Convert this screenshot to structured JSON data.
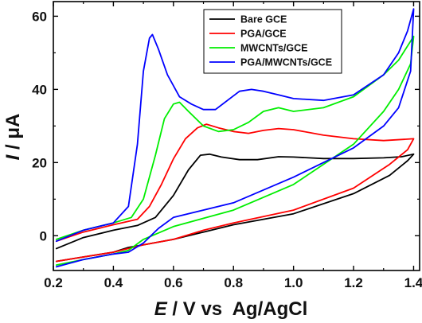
{
  "chart_data": {
    "type": "line",
    "title": "",
    "xlabel": {
      "symbol": "E",
      "rest": " / V vs  Ag/AgCl"
    },
    "ylabel": {
      "symbol": "I",
      "rest": " / μA"
    },
    "xlim": [
      0.2,
      1.42
    ],
    "ylim": [
      -9.5,
      64
    ],
    "xticks": [
      0.2,
      0.4,
      0.6,
      0.8,
      1.0,
      1.2,
      1.4
    ],
    "xtick_labels": [
      "0.2",
      "0.4",
      "0.6",
      "0.8",
      "1.0",
      "1.2",
      "1.4"
    ],
    "yticks": [
      0,
      20,
      40,
      60
    ],
    "ytick_labels": [
      "0",
      "20",
      "40",
      "60"
    ],
    "grid": false,
    "legend_position": "top-right",
    "series": [
      {
        "name": "Bare GCE",
        "color": "#000000",
        "x": [
          0.21,
          0.3,
          0.4,
          0.48,
          0.54,
          0.6,
          0.65,
          0.69,
          0.72,
          0.76,
          0.82,
          0.88,
          0.95,
          1.0,
          1.1,
          1.2,
          1.3,
          1.36,
          1.4,
          1.38,
          1.32,
          1.2,
          1.0,
          0.8,
          0.7,
          0.6,
          0.5,
          0.45,
          0.4,
          0.3,
          0.21
        ],
        "y": [
          -3.5,
          -0.5,
          1.5,
          2.8,
          5.0,
          11.0,
          18.0,
          22.0,
          22.3,
          21.5,
          20.8,
          20.8,
          21.6,
          21.5,
          21.1,
          21.1,
          21.3,
          21.6,
          22.3,
          20.5,
          16.5,
          11.5,
          6.0,
          3.0,
          1.0,
          -1.0,
          -2.5,
          -3.2,
          -4.5,
          -5.8,
          -7.0
        ]
      },
      {
        "name": "PGA/GCE",
        "color": "#ff0000",
        "x": [
          0.21,
          0.3,
          0.4,
          0.48,
          0.52,
          0.56,
          0.6,
          0.64,
          0.68,
          0.71,
          0.75,
          0.8,
          0.85,
          0.9,
          0.95,
          1.0,
          1.1,
          1.2,
          1.3,
          1.4,
          1.38,
          1.32,
          1.2,
          1.0,
          0.8,
          0.7,
          0.6,
          0.5,
          0.45,
          0.4,
          0.3,
          0.21
        ],
        "y": [
          -1.5,
          1.0,
          3.0,
          4.5,
          8.0,
          14.0,
          21.0,
          26.5,
          29.5,
          30.5,
          29.5,
          28.5,
          28.0,
          28.8,
          29.3,
          29.0,
          27.5,
          26.5,
          26.0,
          26.5,
          23.5,
          19.5,
          13.0,
          7.0,
          3.5,
          1.5,
          -1.0,
          -2.5,
          -3.5,
          -4.5,
          -5.8,
          -7.0
        ]
      },
      {
        "name": "MWCNTs/GCE",
        "color": "#00ee00",
        "x": [
          0.21,
          0.3,
          0.4,
          0.46,
          0.5,
          0.54,
          0.57,
          0.6,
          0.62,
          0.65,
          0.7,
          0.75,
          0.8,
          0.85,
          0.9,
          0.95,
          1.0,
          1.1,
          1.2,
          1.3,
          1.35,
          1.4,
          1.39,
          1.35,
          1.3,
          1.2,
          1.0,
          0.8,
          0.6,
          0.5,
          0.45,
          0.4,
          0.3,
          0.21
        ],
        "y": [
          -1.0,
          1.5,
          3.5,
          5.0,
          10.0,
          22.0,
          32.0,
          36.0,
          36.5,
          34.0,
          30.0,
          28.5,
          29.0,
          31.0,
          34.0,
          35.0,
          34.0,
          35.0,
          38.0,
          44.0,
          48.0,
          54.5,
          47.0,
          40.0,
          34.0,
          25.0,
          14.0,
          7.0,
          2.5,
          -1.0,
          -4.0,
          -5.0,
          -6.5,
          -8.0
        ]
      },
      {
        "name": "PGA/MWCNTs/GCE",
        "color": "#0000ff",
        "x": [
          0.21,
          0.3,
          0.4,
          0.45,
          0.48,
          0.5,
          0.52,
          0.53,
          0.55,
          0.58,
          0.62,
          0.66,
          0.7,
          0.74,
          0.78,
          0.82,
          0.86,
          0.9,
          0.95,
          1.0,
          1.1,
          1.2,
          1.3,
          1.35,
          1.38,
          1.4,
          1.39,
          1.35,
          1.3,
          1.2,
          1.0,
          0.8,
          0.6,
          0.55,
          0.5,
          0.45,
          0.4,
          0.3,
          0.21
        ],
        "y": [
          -1.5,
          1.5,
          3.5,
          8.0,
          25.0,
          45.0,
          54.0,
          55.0,
          51.0,
          44.0,
          38.0,
          36.0,
          34.5,
          34.5,
          37.0,
          39.5,
          40.0,
          39.5,
          38.5,
          37.5,
          37.0,
          38.5,
          44.0,
          50.0,
          56.0,
          62.0,
          45.0,
          35.0,
          30.0,
          24.0,
          16.0,
          9.0,
          5.0,
          2.0,
          -2.0,
          -4.5,
          -5.0,
          -6.5,
          -8.5
        ]
      }
    ]
  }
}
